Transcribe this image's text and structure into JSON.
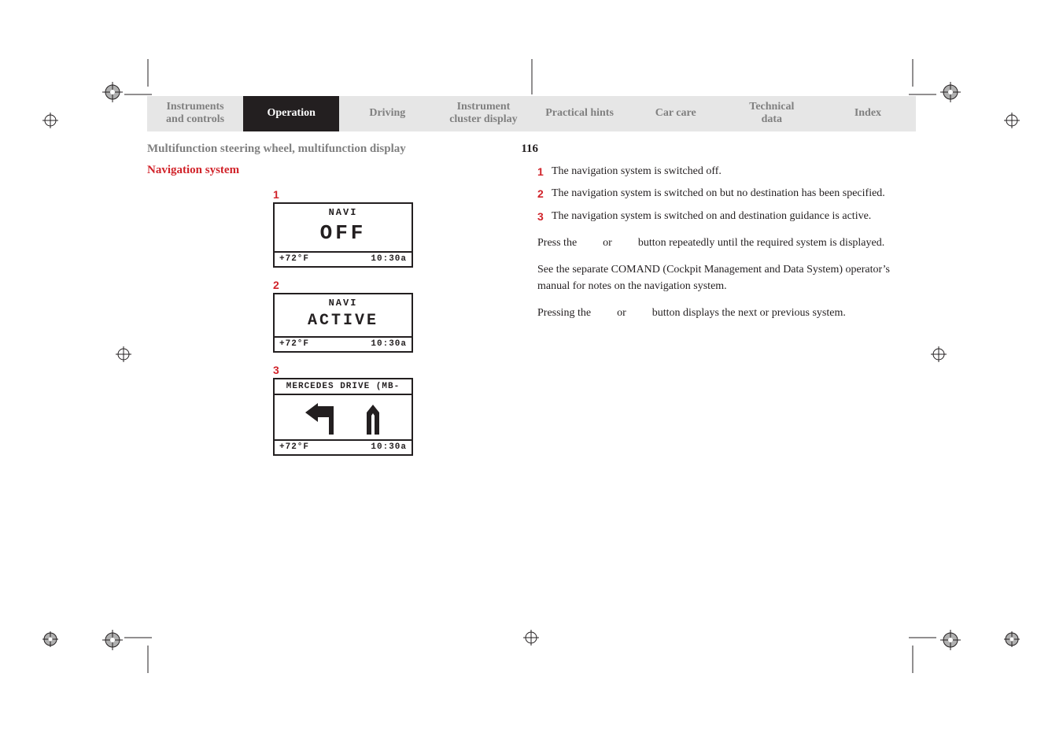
{
  "tabs": [
    {
      "label": "Instruments\nand controls"
    },
    {
      "label": "Operation"
    },
    {
      "label": "Driving"
    },
    {
      "label": "Instrument\ncluster display"
    },
    {
      "label": "Practical hints"
    },
    {
      "label": "Car care"
    },
    {
      "label": "Technical\ndata"
    },
    {
      "label": "Index"
    }
  ],
  "active_tab_index": 1,
  "section_title": "Multifunction steering wheel, multifunction display",
  "page_number": "116",
  "subheading": "Navigation system",
  "screens": [
    {
      "label": "1",
      "top": "NAVI",
      "main": "OFF",
      "main_class": "lcd-big",
      "footer_left": "+72°F",
      "footer_right": "10:30a"
    },
    {
      "label": "2",
      "top": "NAVI",
      "main": "ACTIVE",
      "main_class": "lcd-med",
      "footer_left": "+72°F",
      "footer_right": "10:30a"
    },
    {
      "label": "3",
      "scroll": "MERCEDES DRIVE (MB-",
      "footer_left": "+72°F",
      "footer_right": "10:30a"
    }
  ],
  "states": [
    {
      "num": "1",
      "txt": "The navigation system is switched off."
    },
    {
      "num": "2",
      "txt": "The navigation system is switched on but no destination has been specified."
    },
    {
      "num": "3",
      "txt": "The navigation system is switched on and destination guidance is active."
    }
  ],
  "para1_a": "Press the",
  "para1_b": "or",
  "para1_c": "button repeatedly until the required system is displayed.",
  "para2": "See the separate COMAND (Cockpit Management and Data System) operator’s manual for notes on the navigation system.",
  "para3_a": "Pressing the",
  "para3_b": "or",
  "para3_c": "button displays the next or previous system."
}
